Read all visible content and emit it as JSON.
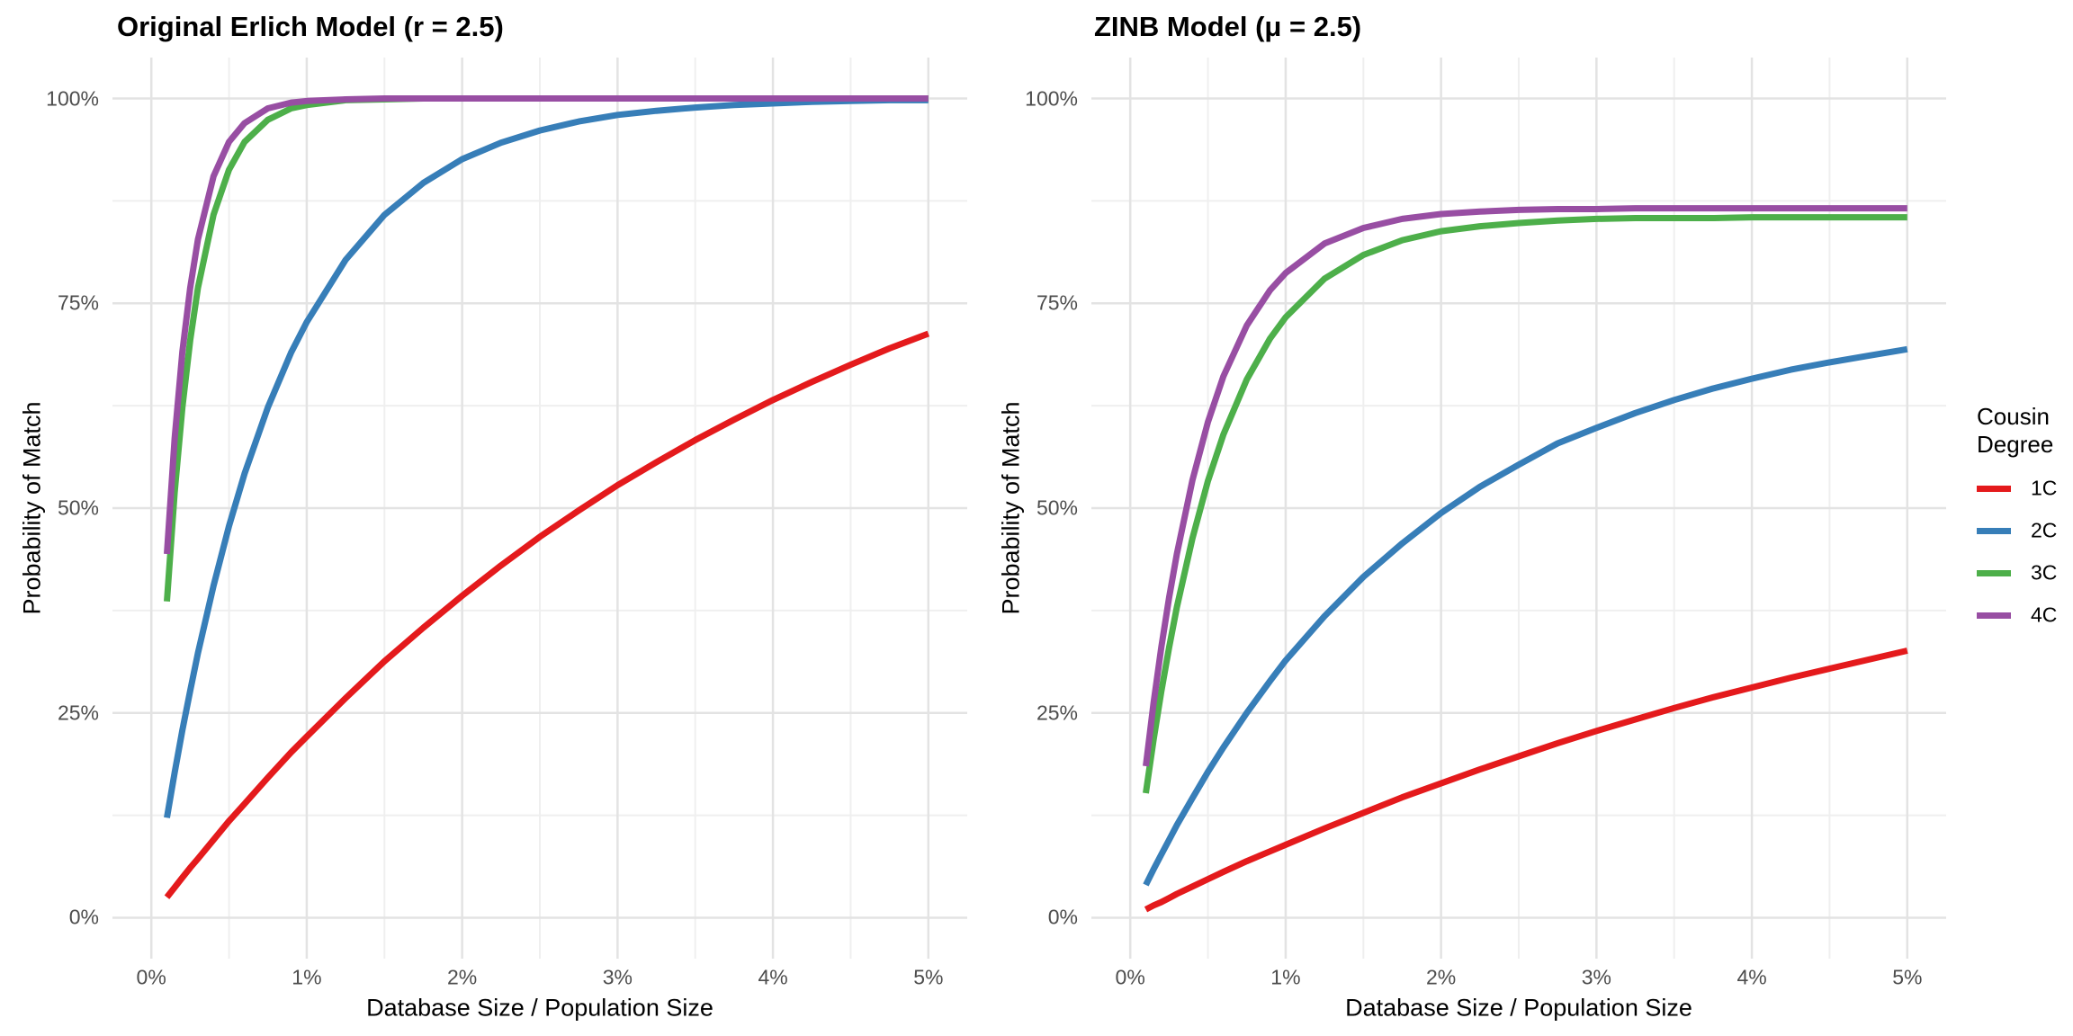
{
  "figure": {
    "background": "#ffffff",
    "tick_label_color": "#4d4d4d",
    "title_color": "#000000",
    "grid_major_color": "#e3e3e3",
    "grid_minor_color": "#efefef"
  },
  "legend": {
    "title_lines": [
      "Cousin",
      "Degree"
    ],
    "position": "right",
    "items": [
      {
        "label": "1C",
        "color": "#E41A1C"
      },
      {
        "label": "2C",
        "color": "#377EB8"
      },
      {
        "label": "3C",
        "color": "#4DAF4A"
      },
      {
        "label": "4C",
        "color": "#984EA3"
      }
    ]
  },
  "chart_data": [
    {
      "type": "line",
      "title": "Original Erlich Model (r = 2.5)",
      "xlabel": "Database Size / Population Size",
      "ylabel": "Probability of Match",
      "xlim": [
        -0.25,
        5.25
      ],
      "ylim": [
        -5,
        105
      ],
      "grid": "major+minor",
      "x_ticks": {
        "values": [
          0,
          1,
          2,
          3,
          4,
          5
        ],
        "labels": [
          "0%",
          "1%",
          "2%",
          "3%",
          "4%",
          "5%"
        ]
      },
      "y_ticks": {
        "values": [
          0,
          25,
          50,
          75,
          100
        ],
        "labels": [
          "0%",
          "25%",
          "50%",
          "75%",
          "100%"
        ]
      },
      "x": [
        0.1,
        0.15,
        0.2,
        0.25,
        0.3,
        0.4,
        0.5,
        0.6,
        0.75,
        0.9,
        1,
        1.25,
        1.5,
        1.75,
        2,
        2.25,
        2.5,
        2.75,
        3,
        3.25,
        3.5,
        3.75,
        4,
        4.25,
        4.5,
        4.75,
        5
      ],
      "series": [
        {
          "name": "1C",
          "color": "#E41A1C",
          "values": [
            2.5,
            3.7,
            4.9,
            6.1,
            7.2,
            9.5,
            11.8,
            13.9,
            17.1,
            20.2,
            22.1,
            26.8,
            31.3,
            35.4,
            39.3,
            43,
            46.5,
            49.7,
            52.8,
            55.6,
            58.3,
            60.8,
            63.2,
            65.4,
            67.5,
            69.5,
            71.3
          ]
        },
        {
          "name": "2C",
          "color": "#377EB8",
          "values": [
            12.2,
            17.7,
            22.9,
            27.7,
            32.3,
            40.5,
            47.8,
            54.2,
            62.3,
            69,
            72.7,
            80.3,
            85.8,
            89.7,
            92.6,
            94.6,
            96.1,
            97.2,
            98,
            98.5,
            98.9,
            99.2,
            99.4,
            99.6,
            99.7,
            99.8,
            99.8
          ]
        },
        {
          "name": "3C",
          "color": "#4DAF4A",
          "values": [
            38.6,
            51.9,
            62.3,
            70.5,
            76.9,
            85.8,
            91.3,
            94.7,
            97.4,
            98.8,
            99.2,
            99.8,
            99.9,
            100,
            100,
            100,
            100,
            100,
            100,
            100,
            100,
            100,
            100,
            100,
            100,
            100,
            100
          ]
        },
        {
          "name": "4C",
          "color": "#984EA3",
          "values": [
            44.4,
            58.5,
            69.1,
            76.9,
            82.8,
            90.5,
            94.7,
            97,
            98.8,
            99.5,
            99.7,
            99.9,
            100,
            100,
            100,
            100,
            100,
            100,
            100,
            100,
            100,
            100,
            100,
            100,
            100,
            100,
            100
          ]
        }
      ]
    },
    {
      "type": "line",
      "title": "ZINB Model (μ = 2.5)",
      "xlabel": "Database Size / Population Size",
      "ylabel": "Probability of Match",
      "xlim": [
        -0.25,
        5.25
      ],
      "ylim": [
        -5,
        105
      ],
      "grid": "major+minor",
      "x_ticks": {
        "values": [
          0,
          1,
          2,
          3,
          4,
          5
        ],
        "labels": [
          "0%",
          "1%",
          "2%",
          "3%",
          "4%",
          "5%"
        ]
      },
      "y_ticks": {
        "values": [
          0,
          25,
          50,
          75,
          100
        ],
        "labels": [
          "0%",
          "25%",
          "50%",
          "75%",
          "100%"
        ]
      },
      "x": [
        0.1,
        0.15,
        0.2,
        0.25,
        0.3,
        0.4,
        0.5,
        0.6,
        0.75,
        0.9,
        1,
        1.25,
        1.5,
        1.75,
        2,
        2.25,
        2.5,
        2.75,
        3,
        3.25,
        3.5,
        3.75,
        4,
        4.25,
        4.5,
        4.75,
        5
      ],
      "series": [
        {
          "name": "1C",
          "color": "#E41A1C",
          "values": [
            1,
            1.5,
            1.9,
            2.4,
            2.9,
            3.8,
            4.7,
            5.6,
            6.9,
            8.1,
            8.9,
            10.9,
            12.8,
            14.7,
            16.4,
            18.1,
            19.7,
            21.3,
            22.8,
            24.2,
            25.6,
            26.9,
            28.1,
            29.3,
            30.4,
            31.5,
            32.6
          ]
        },
        {
          "name": "2C",
          "color": "#377EB8",
          "values": [
            4,
            5.9,
            7.7,
            9.5,
            11.3,
            14.6,
            17.8,
            20.8,
            25,
            28.9,
            31.4,
            36.8,
            41.6,
            45.7,
            49.4,
            52.6,
            55.3,
            57.9,
            59.8,
            61.6,
            63.2,
            64.6,
            65.8,
            66.9,
            67.8,
            68.6,
            69.4
          ]
        },
        {
          "name": "3C",
          "color": "#4DAF4A",
          "values": [
            15.2,
            21.7,
            27.6,
            33,
            37.9,
            46.3,
            53.3,
            59,
            65.7,
            70.7,
            73.3,
            78,
            80.9,
            82.7,
            83.8,
            84.4,
            84.8,
            85.1,
            85.3,
            85.4,
            85.4,
            85.4,
            85.5,
            85.5,
            85.5,
            85.5,
            85.5
          ]
        },
        {
          "name": "4C",
          "color": "#984EA3",
          "values": [
            18.5,
            26.2,
            33,
            39.1,
            44.4,
            53.4,
            60.5,
            66.1,
            72.3,
            76.6,
            78.7,
            82.3,
            84.2,
            85.3,
            85.9,
            86.2,
            86.4,
            86.5,
            86.5,
            86.6,
            86.6,
            86.6,
            86.6,
            86.6,
            86.6,
            86.6,
            86.6
          ]
        }
      ]
    }
  ]
}
